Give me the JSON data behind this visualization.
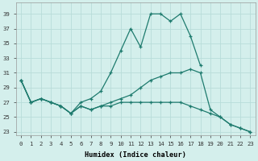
{
  "xlabel": "Humidex (Indice chaleur)",
  "background_color": "#d4efec",
  "grid_color": "#b8ddd9",
  "line_color": "#1e7b6e",
  "xlim": [
    -0.5,
    23.5
  ],
  "ylim": [
    22.5,
    40.5
  ],
  "xticks": [
    0,
    1,
    2,
    3,
    4,
    5,
    6,
    7,
    8,
    9,
    10,
    11,
    12,
    13,
    14,
    15,
    16,
    17,
    18,
    19,
    20,
    21,
    22,
    23
  ],
  "yticks": [
    23,
    25,
    27,
    29,
    31,
    33,
    35,
    37,
    39
  ],
  "series1_x": [
    0,
    1,
    2,
    3,
    4,
    5,
    6,
    7,
    8,
    9,
    10,
    11,
    12,
    13,
    14,
    15,
    16,
    17,
    18
  ],
  "series1_y": [
    30,
    27,
    27.5,
    27,
    26.5,
    25.5,
    27,
    27.5,
    28.5,
    31,
    34,
    37,
    34.5,
    39,
    39,
    38,
    39,
    36,
    32
  ],
  "series2_x": [
    0,
    1,
    2,
    3,
    4,
    5,
    6,
    7,
    8,
    9,
    10,
    11,
    12,
    13,
    14,
    15,
    16,
    17,
    18,
    19,
    20,
    21,
    22,
    23
  ],
  "series2_y": [
    30,
    27,
    27.5,
    27,
    26.5,
    25.5,
    26.5,
    26,
    26.5,
    27,
    27.5,
    28,
    29,
    30,
    30.5,
    31,
    31,
    31.5,
    31,
    26,
    25,
    24,
    23.5,
    23
  ],
  "series3_x": [
    0,
    1,
    2,
    3,
    4,
    5,
    6,
    7,
    8,
    9,
    10,
    11,
    12,
    13,
    14,
    15,
    16,
    17,
    18,
    19,
    20,
    21,
    22,
    23
  ],
  "series3_y": [
    30,
    27,
    27.5,
    27,
    26.5,
    25.5,
    26.5,
    26,
    26.5,
    26.5,
    27,
    27,
    27,
    27,
    27,
    27,
    27,
    26.5,
    26,
    25.5,
    25,
    24,
    23.5,
    23
  ]
}
